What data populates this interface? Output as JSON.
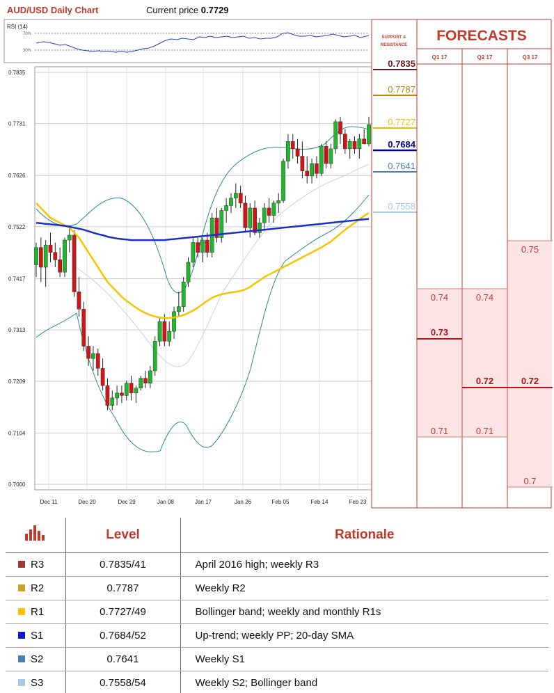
{
  "header": {
    "title": "AUD/USD Daily Chart",
    "price_label": "Current price",
    "price_value": "0.7729"
  },
  "rsi": {
    "label": "RSI (14)",
    "upper_label": "70%",
    "lower_label": "30%"
  },
  "chart_data": {
    "type": "candlestick",
    "title": "AUD/USD Daily Chart",
    "ylim": [
      0.7,
      0.786
    ],
    "y_ticks": [
      "0.7835",
      "0.7731",
      "0.7626",
      "0.7522",
      "0.7417",
      "0.7313",
      "0.7209",
      "0.7104",
      "0.7000"
    ],
    "x_ticks": [
      "Dec 11",
      "Dec 20",
      "Dec 29",
      "Jan 08",
      "Jan 17",
      "Jan 26",
      "Feb 05",
      "Feb 14",
      "Feb 23"
    ],
    "candles": [
      {
        "o": 0.7445,
        "h": 0.749,
        "l": 0.742,
        "c": 0.748
      },
      {
        "o": 0.748,
        "h": 0.75,
        "l": 0.741,
        "c": 0.744
      },
      {
        "o": 0.744,
        "h": 0.7495,
        "l": 0.74,
        "c": 0.7485
      },
      {
        "o": 0.7485,
        "h": 0.751,
        "l": 0.745,
        "c": 0.747
      },
      {
        "o": 0.747,
        "h": 0.749,
        "l": 0.744,
        "c": 0.7455
      },
      {
        "o": 0.7455,
        "h": 0.748,
        "l": 0.742,
        "c": 0.743
      },
      {
        "o": 0.743,
        "h": 0.75,
        "l": 0.742,
        "c": 0.7495
      },
      {
        "o": 0.7495,
        "h": 0.752,
        "l": 0.747,
        "c": 0.7505
      },
      {
        "o": 0.7505,
        "h": 0.7515,
        "l": 0.738,
        "c": 0.739
      },
      {
        "o": 0.739,
        "h": 0.742,
        "l": 0.734,
        "c": 0.7355
      },
      {
        "o": 0.7355,
        "h": 0.737,
        "l": 0.727,
        "c": 0.728
      },
      {
        "o": 0.728,
        "h": 0.73,
        "l": 0.724,
        "c": 0.7255
      },
      {
        "o": 0.7255,
        "h": 0.728,
        "l": 0.723,
        "c": 0.7265
      },
      {
        "o": 0.7265,
        "h": 0.7275,
        "l": 0.722,
        "c": 0.7235
      },
      {
        "o": 0.7235,
        "h": 0.7255,
        "l": 0.719,
        "c": 0.72
      },
      {
        "o": 0.72,
        "h": 0.7215,
        "l": 0.715,
        "c": 0.716
      },
      {
        "o": 0.716,
        "h": 0.719,
        "l": 0.715,
        "c": 0.7175
      },
      {
        "o": 0.7175,
        "h": 0.72,
        "l": 0.716,
        "c": 0.7185
      },
      {
        "o": 0.7185,
        "h": 0.72,
        "l": 0.7165,
        "c": 0.718
      },
      {
        "o": 0.718,
        "h": 0.721,
        "l": 0.717,
        "c": 0.7205
      },
      {
        "o": 0.7205,
        "h": 0.722,
        "l": 0.717,
        "c": 0.7185
      },
      {
        "o": 0.7185,
        "h": 0.72,
        "l": 0.7165,
        "c": 0.7195
      },
      {
        "o": 0.7195,
        "h": 0.722,
        "l": 0.719,
        "c": 0.7215
      },
      {
        "o": 0.7215,
        "h": 0.723,
        "l": 0.7195,
        "c": 0.7205
      },
      {
        "o": 0.7205,
        "h": 0.724,
        "l": 0.7195,
        "c": 0.723
      },
      {
        "o": 0.723,
        "h": 0.73,
        "l": 0.722,
        "c": 0.729
      },
      {
        "o": 0.729,
        "h": 0.734,
        "l": 0.728,
        "c": 0.733
      },
      {
        "o": 0.733,
        "h": 0.7345,
        "l": 0.728,
        "c": 0.729
      },
      {
        "o": 0.729,
        "h": 0.733,
        "l": 0.728,
        "c": 0.731
      },
      {
        "o": 0.731,
        "h": 0.736,
        "l": 0.7295,
        "c": 0.735
      },
      {
        "o": 0.735,
        "h": 0.739,
        "l": 0.734,
        "c": 0.736
      },
      {
        "o": 0.736,
        "h": 0.742,
        "l": 0.735,
        "c": 0.741
      },
      {
        "o": 0.741,
        "h": 0.746,
        "l": 0.74,
        "c": 0.745
      },
      {
        "o": 0.745,
        "h": 0.75,
        "l": 0.744,
        "c": 0.749
      },
      {
        "o": 0.749,
        "h": 0.75,
        "l": 0.746,
        "c": 0.747
      },
      {
        "o": 0.747,
        "h": 0.75,
        "l": 0.745,
        "c": 0.7495
      },
      {
        "o": 0.7495,
        "h": 0.751,
        "l": 0.746,
        "c": 0.747
      },
      {
        "o": 0.747,
        "h": 0.755,
        "l": 0.746,
        "c": 0.754
      },
      {
        "o": 0.754,
        "h": 0.756,
        "l": 0.749,
        "c": 0.75
      },
      {
        "o": 0.75,
        "h": 0.756,
        "l": 0.749,
        "c": 0.7555
      },
      {
        "o": 0.7555,
        "h": 0.758,
        "l": 0.753,
        "c": 0.7565
      },
      {
        "o": 0.7565,
        "h": 0.759,
        "l": 0.755,
        "c": 0.758
      },
      {
        "o": 0.758,
        "h": 0.761,
        "l": 0.756,
        "c": 0.759
      },
      {
        "o": 0.759,
        "h": 0.7605,
        "l": 0.756,
        "c": 0.757
      },
      {
        "o": 0.757,
        "h": 0.7585,
        "l": 0.751,
        "c": 0.752
      },
      {
        "o": 0.752,
        "h": 0.757,
        "l": 0.75,
        "c": 0.756
      },
      {
        "o": 0.756,
        "h": 0.7575,
        "l": 0.7505,
        "c": 0.751
      },
      {
        "o": 0.751,
        "h": 0.754,
        "l": 0.75,
        "c": 0.753
      },
      {
        "o": 0.753,
        "h": 0.757,
        "l": 0.7515,
        "c": 0.756
      },
      {
        "o": 0.756,
        "h": 0.758,
        "l": 0.753,
        "c": 0.7545
      },
      {
        "o": 0.7545,
        "h": 0.7575,
        "l": 0.753,
        "c": 0.757
      },
      {
        "o": 0.757,
        "h": 0.759,
        "l": 0.755,
        "c": 0.7575
      },
      {
        "o": 0.7575,
        "h": 0.766,
        "l": 0.757,
        "c": 0.7655
      },
      {
        "o": 0.7655,
        "h": 0.771,
        "l": 0.764,
        "c": 0.7695
      },
      {
        "o": 0.7695,
        "h": 0.771,
        "l": 0.766,
        "c": 0.768
      },
      {
        "o": 0.768,
        "h": 0.77,
        "l": 0.765,
        "c": 0.7665
      },
      {
        "o": 0.7665,
        "h": 0.7695,
        "l": 0.762,
        "c": 0.7635
      },
      {
        "o": 0.7635,
        "h": 0.7665,
        "l": 0.761,
        "c": 0.7625
      },
      {
        "o": 0.7625,
        "h": 0.766,
        "l": 0.761,
        "c": 0.765
      },
      {
        "o": 0.765,
        "h": 0.7665,
        "l": 0.762,
        "c": 0.763
      },
      {
        "o": 0.763,
        "h": 0.769,
        "l": 0.7625,
        "c": 0.7685
      },
      {
        "o": 0.7685,
        "h": 0.7695,
        "l": 0.764,
        "c": 0.765
      },
      {
        "o": 0.765,
        "h": 0.769,
        "l": 0.764,
        "c": 0.768
      },
      {
        "o": 0.768,
        "h": 0.774,
        "l": 0.767,
        "c": 0.7735
      },
      {
        "o": 0.7735,
        "h": 0.7745,
        "l": 0.769,
        "c": 0.771
      },
      {
        "o": 0.771,
        "h": 0.772,
        "l": 0.767,
        "c": 0.768
      },
      {
        "o": 0.768,
        "h": 0.77,
        "l": 0.766,
        "c": 0.7695
      },
      {
        "o": 0.7695,
        "h": 0.7705,
        "l": 0.767,
        "c": 0.768
      },
      {
        "o": 0.768,
        "h": 0.771,
        "l": 0.766,
        "c": 0.77
      },
      {
        "o": 0.77,
        "h": 0.772,
        "l": 0.769,
        "c": 0.769
      },
      {
        "o": 0.769,
        "h": 0.7745,
        "l": 0.7685,
        "c": 0.7729
      }
    ],
    "series": [
      {
        "values": [
          0.757,
          0.756,
          0.755,
          0.754,
          0.7535,
          0.753,
          0.7525,
          0.752,
          0.751,
          0.75,
          0.7485,
          0.747,
          0.7455,
          0.744,
          0.7425,
          0.741,
          0.74,
          0.739,
          0.738,
          0.7372,
          0.7365,
          0.7358,
          0.7352,
          0.7347,
          0.7343,
          0.734,
          0.7338,
          0.7337,
          0.7337,
          0.7338,
          0.734,
          0.7343,
          0.7347,
          0.7352,
          0.7358,
          0.7365,
          0.7372,
          0.7378,
          0.7382,
          0.7385,
          0.7387,
          0.7389,
          0.739,
          0.7392,
          0.7395,
          0.74,
          0.7407,
          0.7413,
          0.742,
          0.7425,
          0.743,
          0.7435,
          0.744,
          0.7445,
          0.745,
          0.7455,
          0.746,
          0.7465,
          0.747,
          0.7475,
          0.748,
          0.7486,
          0.7492,
          0.75,
          0.7508,
          0.7516,
          0.7523,
          0.753,
          0.7537,
          0.7544,
          0.755
        ]
      },
      {
        "values": [
          0.753,
          0.7529,
          0.7528,
          0.7527,
          0.7526,
          0.7525,
          0.7524,
          0.7522,
          0.752,
          0.7518,
          0.7516,
          0.7513,
          0.751,
          0.7507,
          0.7505,
          0.7502,
          0.75,
          0.7498,
          0.7497,
          0.7496,
          0.7495,
          0.7495,
          0.7495,
          0.7495,
          0.7495,
          0.7495,
          0.7495,
          0.7495,
          0.7496,
          0.7497,
          0.7498,
          0.7499,
          0.75,
          0.7501,
          0.7502,
          0.7503,
          0.7504,
          0.7505,
          0.7506,
          0.7507,
          0.7508,
          0.7509,
          0.751,
          0.7511,
          0.7512,
          0.7513,
          0.7514,
          0.7515,
          0.7516,
          0.7517,
          0.7518,
          0.7519,
          0.752,
          0.7521,
          0.7522,
          0.7523,
          0.7524,
          0.7525,
          0.7526,
          0.7527,
          0.7528,
          0.7529,
          0.753,
          0.7531,
          0.7532,
          0.7533,
          0.7534,
          0.7535,
          0.7536,
          0.7537,
          0.7538
        ]
      }
    ]
  },
  "support_resistance": {
    "header_line1": "SUPPORT &",
    "header_line2": "RESISTANCE",
    "levels": [
      {
        "value": "0.7835",
        "price": 0.7835,
        "color": "#6b1a1a"
      },
      {
        "value": "0.7787",
        "price": 0.7787,
        "color": "#b8860b"
      },
      {
        "value": "0.7727",
        "price": 0.7727,
        "color": "#f0c000"
      },
      {
        "value": "0.7684",
        "price": 0.7684,
        "color": "#00008b"
      },
      {
        "value": "0.7641",
        "price": 0.7641,
        "color": "#4a7fb5"
      },
      {
        "value": "0.7558",
        "price": 0.7558,
        "color": "#a7c7e7"
      }
    ]
  },
  "forecasts": {
    "title": "FORECASTS",
    "quarters": [
      {
        "label": "Q1 17",
        "high": "0.74",
        "mid": "0.73",
        "low": "0.71"
      },
      {
        "label": "Q2 17",
        "high": "0.74",
        "mid": "0.72",
        "low": "0.71"
      },
      {
        "label": "Q3 17",
        "high": "0.75",
        "mid": "0.72",
        "low": "0.7"
      }
    ]
  },
  "table": {
    "headers": {
      "level": "Level",
      "rationale": "Rationale"
    },
    "rows": [
      {
        "code": "R3",
        "color": "#9e3b34",
        "level": "0.7835/41",
        "rationale": "April 2016 high; weekly R3"
      },
      {
        "code": "R2",
        "color": "#c9a227",
        "level": "0.7787",
        "rationale": "Weekly R2"
      },
      {
        "code": "R1",
        "color": "#f5c400",
        "level": "0.7727/49",
        "rationale": "Bollinger band; weekly and monthly R1s"
      },
      {
        "code": "S1",
        "color": "#1414c8",
        "level": "0.7684/52",
        "rationale": "Up-trend; weekly PP; 20-day SMA"
      },
      {
        "code": "S2",
        "color": "#4a7fb5",
        "level": "0.7641",
        "rationale": "Weekly S1"
      },
      {
        "code": "S3",
        "color": "#a9c6e2",
        "level": "0.7558/54",
        "rationale": "Weekly S2; Bollinger band"
      }
    ]
  }
}
